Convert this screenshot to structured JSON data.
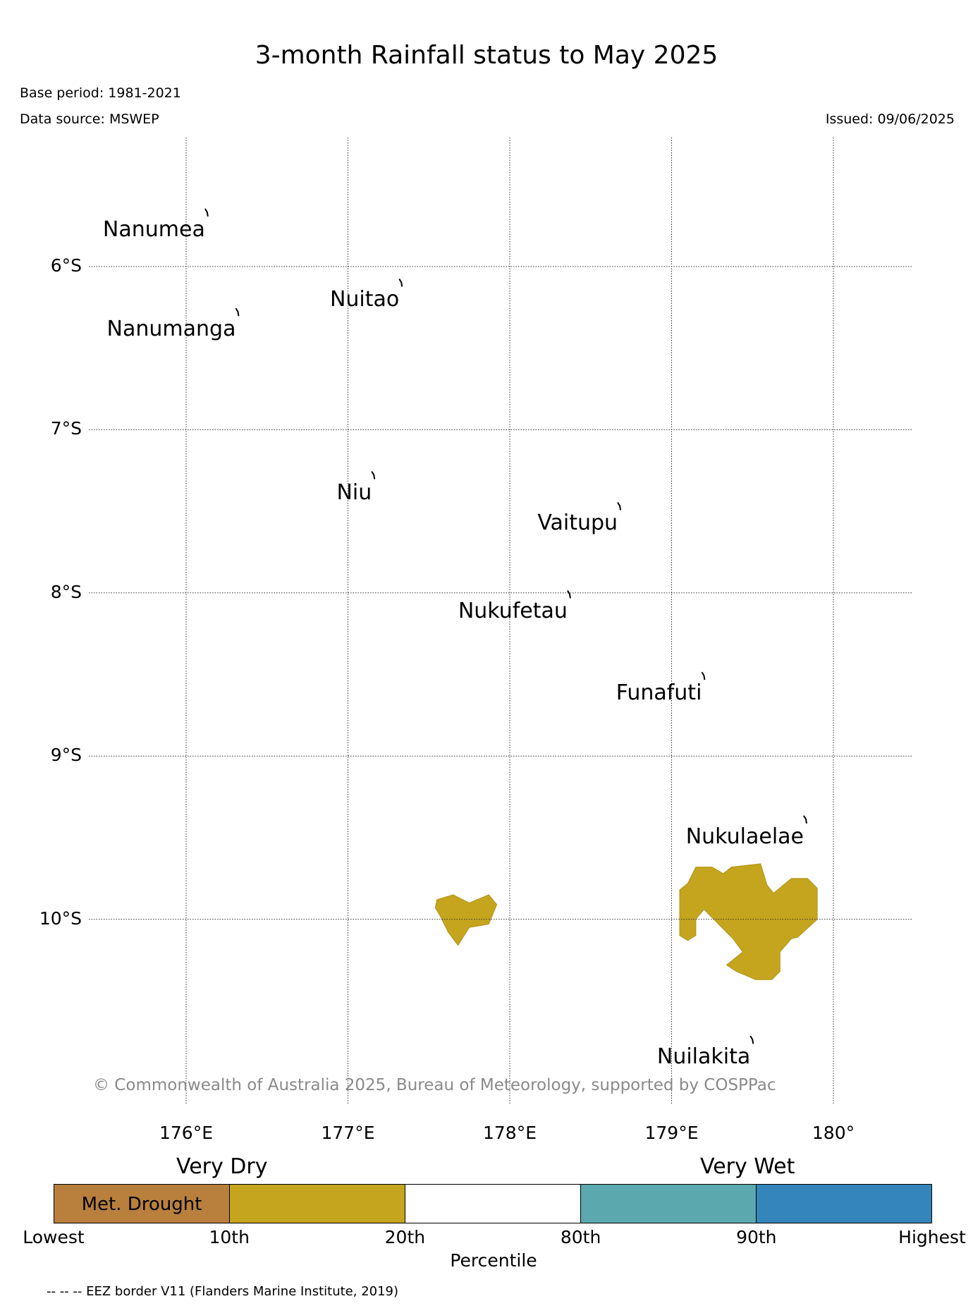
{
  "title": "3-month Rainfall status to May 2025",
  "base_period": "Base period: 1981-2021",
  "data_source": "Data source: MSWEP",
  "issued": "Issued: 09/06/2025",
  "copyright": "© Commonwealth of Australia 2025, Bureau of Meteorology, supported by COSPPac",
  "map": {
    "lon_range": [
      175.4,
      180.5
    ],
    "lat_range": [
      -11.2,
      -5.2
    ],
    "grid": true,
    "grid_style": "dotted",
    "lat_ticks": [
      {
        "value": -6,
        "label": "6°S"
      },
      {
        "value": -7,
        "label": "7°S"
      },
      {
        "value": -8,
        "label": "8°S"
      },
      {
        "value": -9,
        "label": "9°S"
      },
      {
        "value": -10,
        "label": "10°S"
      }
    ],
    "lon_ticks": [
      {
        "value": 176,
        "label": "176°E"
      },
      {
        "value": 177,
        "label": "177°E"
      },
      {
        "value": 178,
        "label": "178°E"
      },
      {
        "value": 179,
        "label": "179°E"
      },
      {
        "value": 180,
        "label": "180°"
      }
    ],
    "islands": [
      {
        "name": "Nanumea",
        "lon": 176.13,
        "lat": -5.68
      },
      {
        "name": "Nuitao",
        "lon": 177.33,
        "lat": -6.11
      },
      {
        "name": "Nanumanga",
        "lon": 176.32,
        "lat": -6.29
      },
      {
        "name": "Niu",
        "lon": 177.16,
        "lat": -7.29
      },
      {
        "name": "Vaitupu",
        "lon": 178.68,
        "lat": -7.48
      },
      {
        "name": "Nukufetau",
        "lon": 178.37,
        "lat": -8.02
      },
      {
        "name": "Funafuti",
        "lon": 179.2,
        "lat": -8.52
      },
      {
        "name": "Nukulaelae",
        "lon": 179.83,
        "lat": -9.4
      },
      {
        "name": "Nuilakita",
        "lon": 179.5,
        "lat": -10.75
      }
    ],
    "rainfall_regions": [
      {
        "category": "10th-20th",
        "color": "#c5a41e",
        "polygon": [
          [
            177.55,
            -9.88
          ],
          [
            177.65,
            -9.85
          ],
          [
            177.75,
            -9.9
          ],
          [
            177.87,
            -9.85
          ],
          [
            177.92,
            -9.91
          ],
          [
            177.87,
            -10.03
          ],
          [
            177.75,
            -10.05
          ],
          [
            177.68,
            -10.16
          ],
          [
            177.62,
            -10.08
          ],
          [
            177.57,
            -9.98
          ],
          [
            177.54,
            -9.93
          ]
        ]
      },
      {
        "category": "10th-20th",
        "color": "#c5a41e",
        "polygon": [
          [
            179.1,
            -9.78
          ],
          [
            179.15,
            -9.68
          ],
          [
            179.25,
            -9.68
          ],
          [
            179.32,
            -9.72
          ],
          [
            179.37,
            -9.68
          ],
          [
            179.55,
            -9.66
          ],
          [
            179.59,
            -9.79
          ],
          [
            179.63,
            -9.84
          ],
          [
            179.74,
            -9.75
          ],
          [
            179.84,
            -9.75
          ],
          [
            179.9,
            -9.81
          ],
          [
            179.9,
            -10.0
          ],
          [
            179.78,
            -10.11
          ],
          [
            179.74,
            -10.12
          ],
          [
            179.67,
            -10.2
          ],
          [
            179.67,
            -10.32
          ],
          [
            179.62,
            -10.37
          ],
          [
            179.52,
            -10.37
          ],
          [
            179.4,
            -10.32
          ],
          [
            179.34,
            -10.28
          ],
          [
            179.44,
            -10.2
          ],
          [
            179.38,
            -10.12
          ],
          [
            179.27,
            -10.01
          ],
          [
            179.2,
            -9.94
          ],
          [
            179.15,
            -10.0
          ],
          [
            179.15,
            -10.1
          ],
          [
            179.1,
            -10.13
          ],
          [
            179.05,
            -10.1
          ],
          [
            179.05,
            -9.82
          ]
        ]
      }
    ]
  },
  "legend": {
    "left_label": "Very Dry",
    "right_label": "Very Wet",
    "segments": [
      {
        "color": "#b9803d",
        "label": "Met. Drought"
      },
      {
        "color": "#c5a41e",
        "label": ""
      },
      {
        "color": "#ffffff",
        "label": ""
      },
      {
        "color": "#5ba9ae",
        "label": ""
      },
      {
        "color": "#3485b9",
        "label": ""
      }
    ],
    "ticks": [
      "Lowest",
      "10th",
      "20th",
      "80th",
      "90th",
      "Highest"
    ],
    "axis_label": "Percentile"
  },
  "eez_note": "-- -- -- EEZ border V11 (Flanders Marine Institute, 2019)"
}
